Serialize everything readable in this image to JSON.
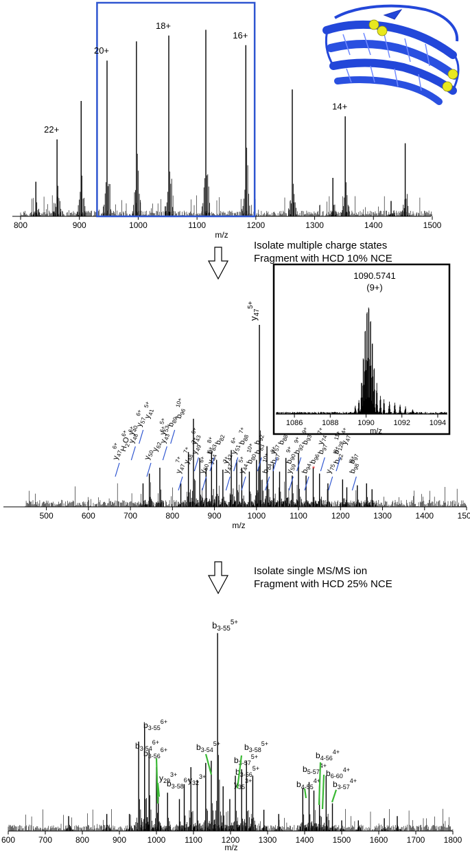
{
  "chart_data": [
    {
      "type": "bar",
      "panel": "ms1-full-scan",
      "xlabel": "m/z",
      "xlim": [
        800,
        1500
      ],
      "xticks": [
        800,
        900,
        1000,
        1100,
        1200,
        1300,
        1400,
        1500
      ],
      "isolation_window": [
        930,
        1198
      ],
      "charge_labels": [
        {
          "text": "22+",
          "x": 862
        },
        {
          "text": "20+",
          "x": 947
        },
        {
          "text": "18+",
          "x": 1052
        },
        {
          "text": "16+",
          "x": 1183
        },
        {
          "text": "14+",
          "x": 1352
        }
      ],
      "peaks": {
        "x": [
          826,
          862,
          903,
          947,
          997,
          1052,
          1115,
          1183,
          1262,
          1331,
          1352,
          1430,
          1454
        ],
        "y": [
          0.18,
          0.4,
          0.6,
          0.81,
          0.91,
          0.94,
          0.97,
          0.89,
          0.66,
          0.2,
          0.52,
          0.08,
          0.38
        ]
      },
      "noise_seed": 11,
      "noise_level": 0.05,
      "color": "#000000"
    },
    {
      "type": "bar",
      "panel": "ms2-hcd-10",
      "xlabel": "m/z",
      "xlim": [
        450,
        1500
      ],
      "xticks": [
        500,
        600,
        700,
        800,
        900,
        1000,
        1100,
        1200,
        1300,
        1400,
        1500
      ],
      "peaks": {
        "x": [
          730,
          745,
          770,
          820,
          838,
          850,
          865,
          880,
          893,
          905,
          920,
          940,
          953,
          965,
          983,
          1000,
          1007,
          1025,
          1040,
          1055,
          1070,
          1085,
          1100,
          1118,
          1135,
          1150,
          1170,
          1205,
          1215,
          1240,
          1262,
          1275
        ],
        "y": [
          0.12,
          0.17,
          0.2,
          0.12,
          0.28,
          0.45,
          0.25,
          0.2,
          0.28,
          0.24,
          0.19,
          0.29,
          0.24,
          0.2,
          0.18,
          0.24,
          0.93,
          0.31,
          0.22,
          0.18,
          0.25,
          0.16,
          0.27,
          0.16,
          0.2,
          0.17,
          0.12,
          0.14,
          0.1,
          0.11,
          0.12,
          0.09
        ]
      },
      "noise_seed": 23,
      "noise_level": 0.06,
      "color": "#000000",
      "top_label": {
        "base": "y",
        "sub": "47",
        "sup": "5+",
        "x": 1007
      },
      "ion_labels": [
        {
          "base": "y",
          "sub": "47",
          "sup": "6+"
        },
        {
          "base": "H",
          "sub": "2",
          "sup": "",
          "suffix": "O",
          "suffix_sup": "6+"
        },
        {
          "base": "y",
          "sub": "48",
          "sup": "6+"
        },
        {
          "base": "y",
          "sub": "40",
          "sup": ""
        },
        {
          "base": "y",
          "sub": "57",
          "sup": "6+"
        },
        {
          "base": "y",
          "sub": "41",
          "sup": "5+"
        },
        {
          "base": "y",
          "sub": "50",
          "sup": ""
        },
        {
          "base": "y",
          "sub": "62",
          "sup": ""
        },
        {
          "base": "y",
          "sub": "43",
          "sup": "6+"
        },
        {
          "base": "y",
          "sub": "53",
          "sup": "5+"
        },
        {
          "base": "b",
          "sub": "89",
          "sup": ""
        },
        {
          "base": "b",
          "sub": "96",
          "sup": "10+"
        },
        {
          "base": "y",
          "sub": "47",
          "sup": "7+"
        },
        {
          "base": "y",
          "sub": "48",
          "sup": "7+"
        },
        {
          "base": "y",
          "sub": "49",
          "sup": "7+"
        },
        {
          "base": "y",
          "sub": "43",
          "sup": "6+"
        },
        {
          "base": "y",
          "sub": "50",
          "sup": "6+"
        },
        {
          "base": "y",
          "sub": "44",
          "sup": "6+"
        },
        {
          "base": "b",
          "sub": "83",
          "sup": "8+"
        },
        {
          "base": "b",
          "sub": "82",
          "sup": ""
        },
        {
          "base": "y",
          "sub": "47",
          "sup": "7+"
        },
        {
          "base": "y",
          "sub": "42",
          "sup": ""
        },
        {
          "base": "y",
          "sub": "51",
          "sup": "6+"
        },
        {
          "base": "b",
          "sub": "88",
          "sup": "7+"
        },
        {
          "base": "y",
          "sub": "44",
          "sup": "5+"
        },
        {
          "base": "b",
          "sub": "80",
          "sup": "10+"
        },
        {
          "base": "b",
          "sub": "83",
          "sup": ""
        },
        {
          "base": "b",
          "sub": "92",
          "sup": ""
        },
        {
          "base": "b",
          "sub": "84",
          "sup": "10+"
        },
        {
          "base": "b",
          "sub": "87",
          "sup": "9+"
        },
        {
          "base": "y",
          "sub": "57",
          "sup": ""
        },
        {
          "base": "b",
          "sub": "88",
          "sup": ""
        },
        {
          "base": "y",
          "sub": "59",
          "sup": ""
        },
        {
          "base": "b",
          "sub": "90",
          "sup": "9+"
        },
        {
          "base": "b",
          "sub": "92",
          "sup": "9+"
        },
        {
          "base": "b",
          "sub": "93",
          "sup": "9+"
        },
        {
          "base": "b",
          "sub": "94",
          "sup": ""
        },
        {
          "base": "b",
          "sub": "96",
          "sup": ""
        },
        {
          "base": "b",
          "sub": "97",
          "sup": ""
        },
        {
          "base": "y",
          "sub": "74",
          "sup": "7+"
        },
        {
          "base": "y",
          "sub": "75",
          "sup": ""
        },
        {
          "base": "b",
          "sub": "92",
          "sup": "8+"
        },
        {
          "base": "b",
          "sub": "128",
          "sup": "11+"
        },
        {
          "base": "y",
          "sub": "47",
          "sup": "4+"
        },
        {
          "base": "b",
          "sub": "98",
          "sup": "8+"
        },
        {
          "base": "b",
          "sub": "97",
          "sup": ""
        }
      ]
    },
    {
      "type": "line",
      "panel": "isolated-precursor-inset",
      "xlabel": "m/z",
      "xlim": [
        1085,
        1094.5
      ],
      "xticks": [
        1086,
        1088,
        1090,
        1092,
        1094
      ],
      "peak_mz": "1090.5741",
      "charge": "(9+)"
    },
    {
      "type": "bar",
      "panel": "ms3-hcd-25",
      "xlabel": "m/z",
      "xlim": [
        600,
        1800
      ],
      "xticks": [
        600,
        700,
        800,
        900,
        1000,
        1100,
        1200,
        1300,
        1400,
        1500,
        1600,
        1700,
        1800
      ],
      "peaks": {
        "x": [
          763,
          866,
          927,
          952,
          968,
          980,
          1000,
          1005,
          1030,
          1062,
          1075,
          1093,
          1110,
          1133,
          1148,
          1165,
          1180,
          1198,
          1213,
          1230,
          1243,
          1260,
          1290,
          1330,
          1395,
          1412,
          1425,
          1440,
          1458,
          1475,
          1500,
          1545,
          1615,
          1650
        ],
        "y": [
          0.07,
          0.08,
          0.08,
          0.42,
          0.5,
          0.38,
          0.3,
          0.16,
          0.18,
          0.15,
          0.22,
          0.3,
          0.24,
          0.32,
          0.33,
          0.93,
          0.21,
          0.15,
          0.26,
          0.29,
          0.33,
          0.26,
          0.1,
          0.08,
          0.2,
          0.23,
          0.19,
          0.21,
          0.26,
          0.13,
          0.05,
          0.05,
          0.06,
          0.07
        ],
        "color": "#000000"
      },
      "noise_seed": 37,
      "noise_level": 0.05,
      "top_label": {
        "base": "b",
        "sub": "3-55",
        "sup": "5+",
        "x": 1165
      },
      "ion_labels": [
        {
          "base": "b",
          "sub": "3-55",
          "sup": "6+"
        },
        {
          "base": "b",
          "sub": "3-54",
          "sup": "6+"
        },
        {
          "base": "b",
          "sub": "3-56",
          "sup": "6+"
        },
        {
          "base": "y",
          "sub": "29",
          "sup": "3+"
        },
        {
          "base": "b",
          "sub": "3-58",
          "sup": "6+"
        },
        {
          "base": "y",
          "sub": "32",
          "sup": "3+"
        },
        {
          "base": "b",
          "sub": "3-54",
          "sup": "5+"
        },
        {
          "base": "b",
          "sub": "3-58",
          "sup": "5+"
        },
        {
          "base": "b",
          "sub": "3-57",
          "sup": "5+"
        },
        {
          "base": "b",
          "sub": "3-56",
          "sup": "5+"
        },
        {
          "base": "y",
          "sub": "35",
          "sup": "3+"
        },
        {
          "base": "b",
          "sub": "4-56",
          "sup": "4+"
        },
        {
          "base": "b",
          "sub": "5-57",
          "sup": "4+"
        },
        {
          "base": "b",
          "sub": "6-60",
          "sup": "4+"
        },
        {
          "base": "b",
          "sub": "4-55",
          "sup": "4+"
        },
        {
          "base": "b",
          "sub": "3-57",
          "sup": "4+"
        }
      ]
    }
  ],
  "annotations": {
    "step1_line1": "Isolate multiple charge states",
    "step1_line2": "Fragment with HCD 10% NCE",
    "step2_line1": "Isolate  single MS/MS ion",
    "step2_line2": "Fragment with HCD 25% NCE"
  },
  "colors": {
    "window": "#2e55d0",
    "assign_blue": "#2e55d0",
    "assign_green": "#3ab835",
    "protein": "#2347d9",
    "disulfide": "#e8e81e",
    "marker": "#e02020"
  }
}
